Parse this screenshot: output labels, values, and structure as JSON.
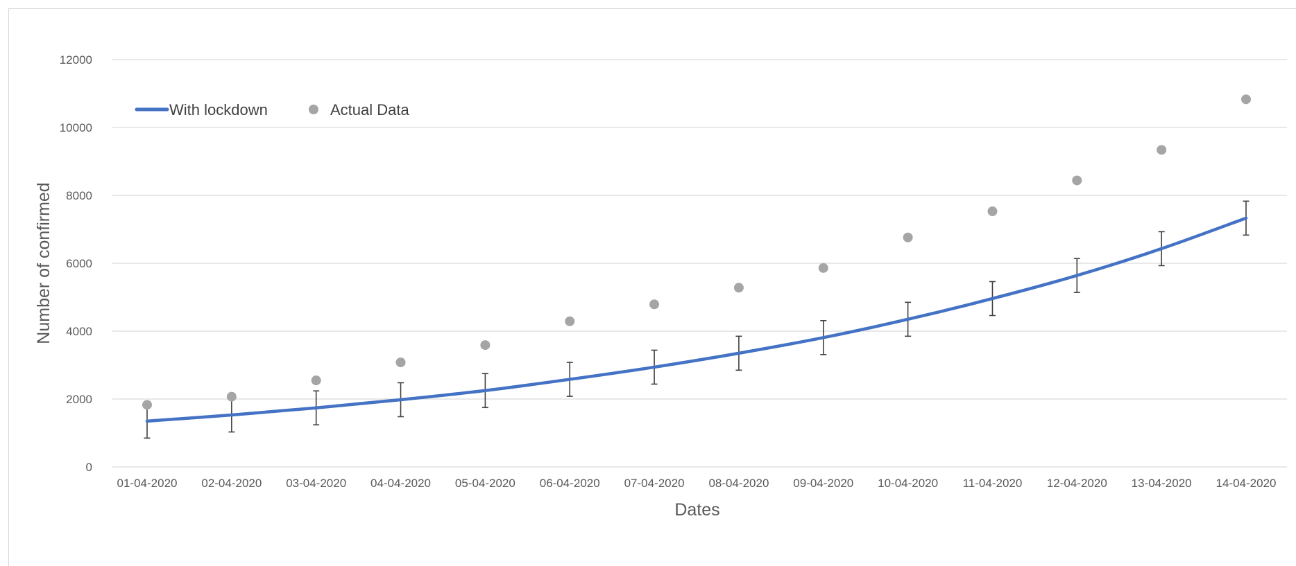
{
  "chart_data": {
    "type": "line",
    "title": "",
    "xlabel": "Dates",
    "ylabel": "Number of confirmed",
    "ylim": [
      0,
      12000
    ],
    "yticks": [
      0,
      2000,
      4000,
      6000,
      8000,
      10000,
      12000
    ],
    "grid": "horizontal",
    "legend_position": "top-left",
    "categories": [
      "01-04-2020",
      "02-04-2020",
      "03-04-2020",
      "04-04-2020",
      "05-04-2020",
      "06-04-2020",
      "07-04-2020",
      "08-04-2020",
      "09-04-2020",
      "10-04-2020",
      "11-04-2020",
      "12-04-2020",
      "13-04-2020",
      "14-04-2020"
    ],
    "series": [
      {
        "name": "With lockdown",
        "kind": "line",
        "color": "#4472c4",
        "values": [
          1350,
          1530,
          1740,
          1980,
          2250,
          2580,
          2940,
          3350,
          3810,
          4350,
          4960,
          5640,
          6430,
          7330
        ],
        "error_bars": {
          "minus": 500,
          "plus": 500,
          "color": "#404040"
        }
      },
      {
        "name": "Actual Data",
        "kind": "scatter",
        "color": "#a5a5a5",
        "values": [
          1830,
          2070,
          2550,
          3080,
          3590,
          4290,
          4790,
          5280,
          5860,
          6760,
          7530,
          8440,
          9340,
          10830
        ]
      }
    ]
  }
}
